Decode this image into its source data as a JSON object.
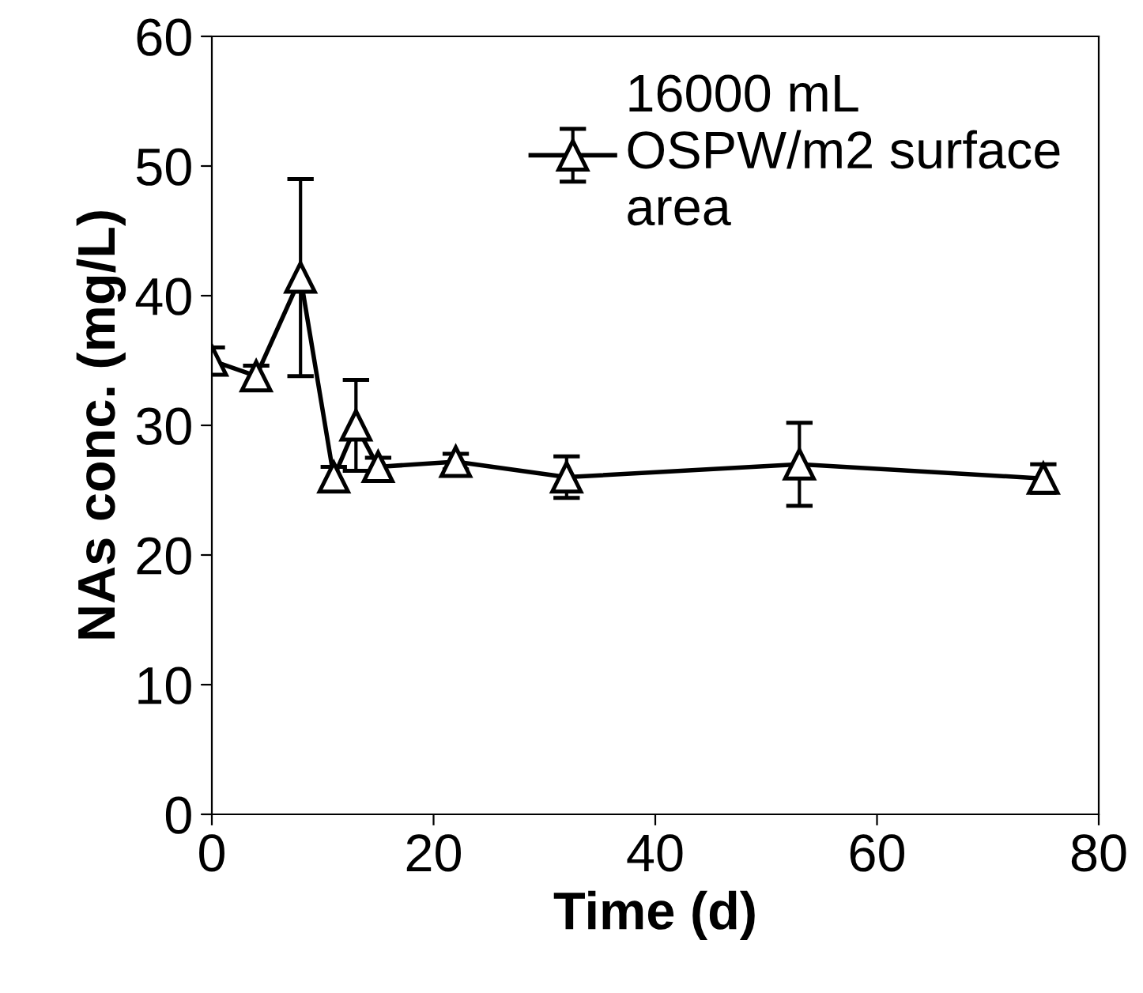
{
  "chart_data": {
    "type": "line",
    "xlabel": "Time (d)",
    "ylabel": "NAs conc. (mg/L)",
    "x": [
      0,
      4,
      8,
      11,
      13,
      15,
      22,
      32,
      53,
      75
    ],
    "series": [
      {
        "name": "16000 mL\nOSPW/m2 surface\narea",
        "color": "#000000",
        "values": [
          35,
          33.8,
          41.4,
          26,
          30,
          26.8,
          27.2,
          26,
          27,
          25.9
        ],
        "errors": [
          1,
          0.8,
          7.6,
          0.8,
          3.5,
          0.7,
          0.6,
          1.6,
          3.2,
          1.1
        ]
      }
    ],
    "xlim": [
      0,
      80
    ],
    "xticks": [
      0,
      20,
      40,
      60,
      80
    ],
    "ylim": [
      0,
      60
    ],
    "yticks": [
      0,
      10,
      20,
      30,
      40,
      50,
      60
    ],
    "marker": "triangle",
    "line_style": "solid",
    "legend": "top right",
    "grid": false
  }
}
